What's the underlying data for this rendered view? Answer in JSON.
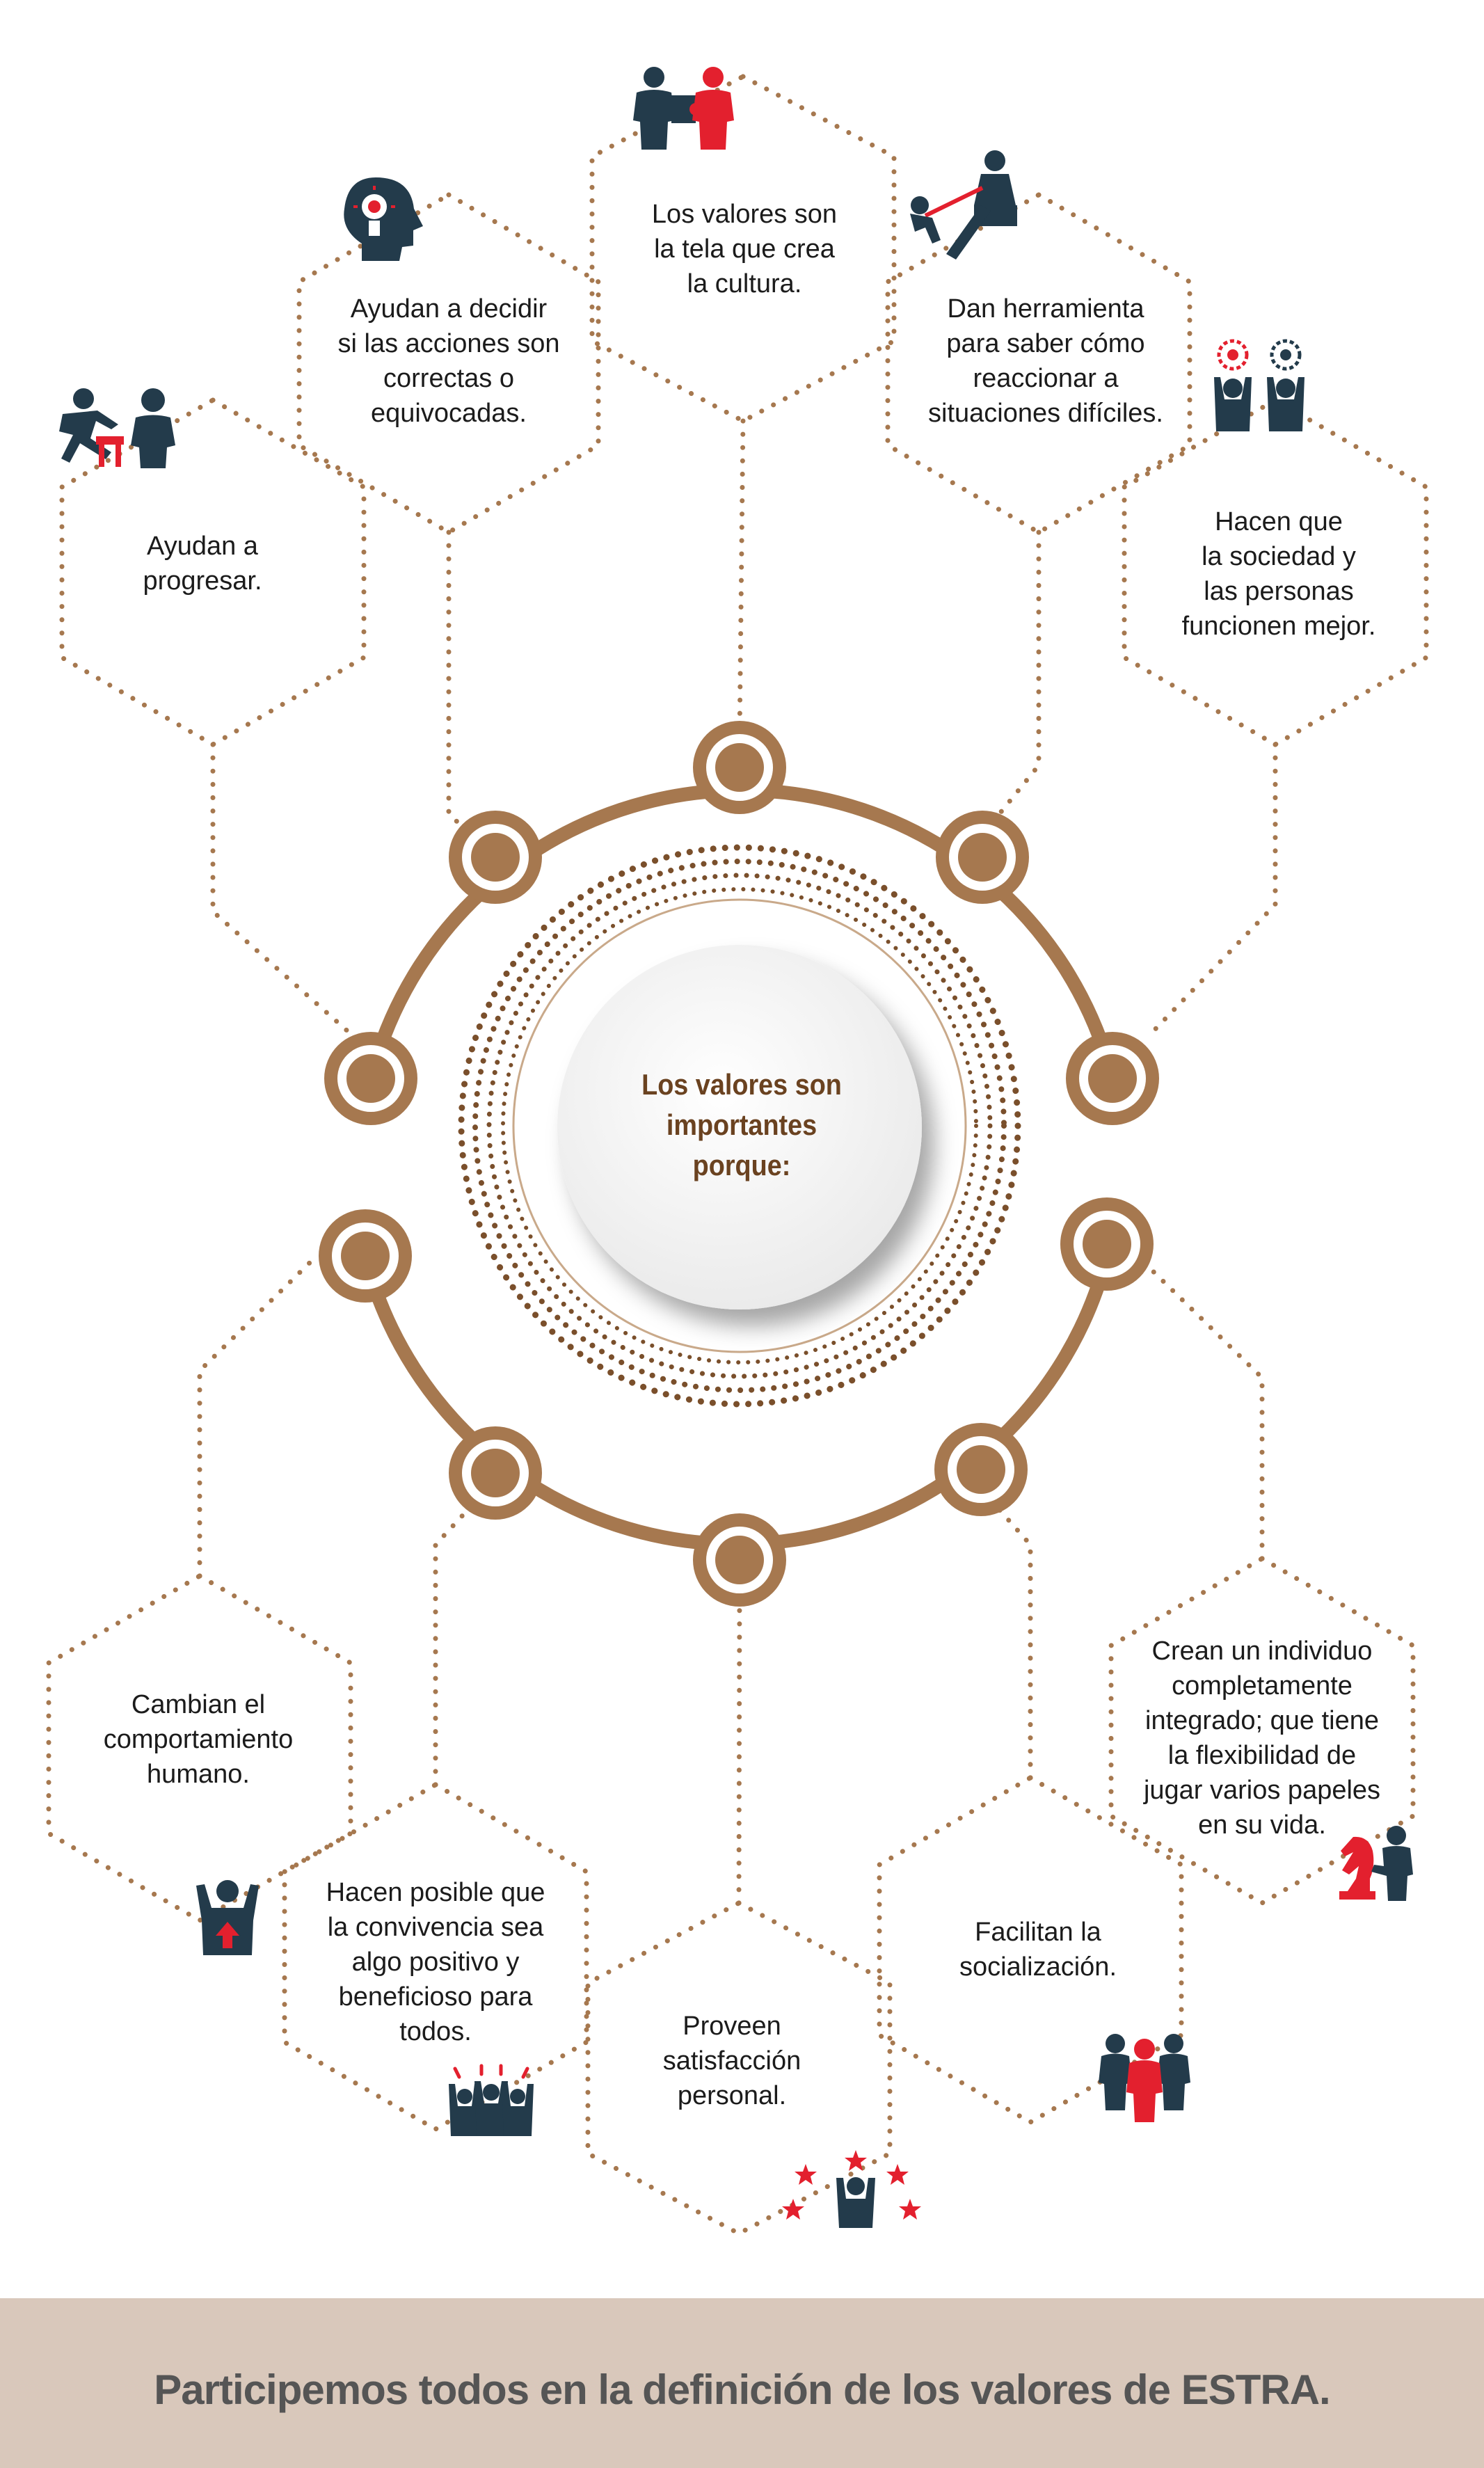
{
  "center": {
    "title": "Los valores son\nimportantes porque:"
  },
  "reasons": [
    {
      "id": "progresar",
      "text": "Ayudan a\nprogresar.",
      "icon": "hurdle-jump-icon"
    },
    {
      "id": "decidir",
      "text": "Ayudan a decidir\nsi las acciones son\ncorrectas o\nequivocadas.",
      "icon": "head-lightbulb-icon"
    },
    {
      "id": "cultura",
      "text": "Los valores son\nla tela que crea\nla cultura.",
      "icon": "puzzle-people-icon"
    },
    {
      "id": "herramienta",
      "text": "Dan herramienta\npara saber cómo\nreaccionar a\nsituaciones difíciles.",
      "icon": "helping-hand-icon"
    },
    {
      "id": "sociedad",
      "text": "Hacen que\nla sociedad y\nlas personas\nfuncionen mejor.",
      "icon": "gears-people-icon"
    },
    {
      "id": "comportamiento",
      "text": "Cambian el\ncomportamiento\nhumano.",
      "icon": "person-arrow-up-icon"
    },
    {
      "id": "convivencia",
      "text": "Hacen posible que\nla convivencia sea\nalgo positivo y\nbeneficioso para\ntodos.",
      "icon": "cheering-group-icon"
    },
    {
      "id": "satisfaccion",
      "text": "Proveen\nsatisfacción\npersonal.",
      "icon": "star-person-icon"
    },
    {
      "id": "socializacion",
      "text": "Facilitan la\nsocialización.",
      "icon": "team-group-icon"
    },
    {
      "id": "individuo",
      "text": "Crean un individuo\ncompletamente\nintegrado; que tiene\nla flexibilidad de\njugar varios papeles\nen su vida.",
      "icon": "chess-knight-person-icon"
    }
  ],
  "footer": {
    "text": "Participemos todos en la definición de los valores de ESTRA."
  },
  "colors": {
    "brown": "#a6784f",
    "dark_navy": "#233b4b",
    "red": "#e3202e",
    "center_text": "#6a4220",
    "footer_bg": "#d9c8bb"
  }
}
